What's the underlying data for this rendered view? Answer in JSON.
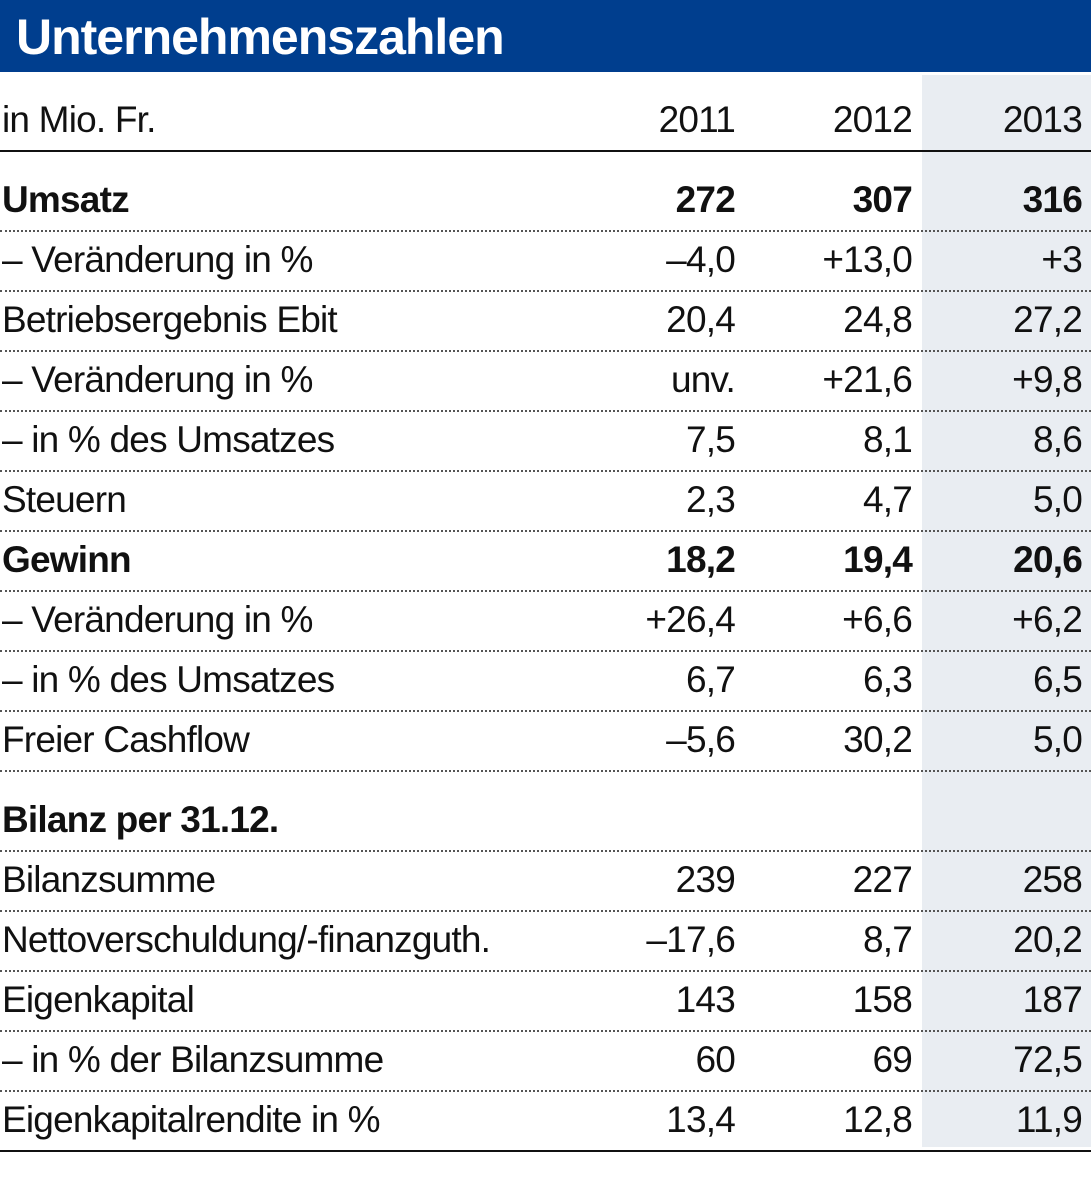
{
  "header": {
    "title": "Unternehmenszahlen"
  },
  "table": {
    "columns": [
      "in Mio. Fr.",
      "2011",
      "2012",
      "2013"
    ],
    "rows": [
      {
        "cells": [
          "Umsatz",
          "272",
          "307",
          "316"
        ],
        "bold": true
      },
      {
        "cells": [
          "– Veränderung in %",
          "–4,0",
          "+13,0",
          "+3"
        ],
        "bold": false
      },
      {
        "cells": [
          "Betriebsergebnis Ebit",
          "20,4",
          "24,8",
          "27,2"
        ],
        "bold": false
      },
      {
        "cells": [
          "– Veränderung in %",
          "unv.",
          "+21,6",
          "+9,8"
        ],
        "bold": false
      },
      {
        "cells": [
          "– in % des Umsatzes",
          "7,5",
          "8,1",
          "8,6"
        ],
        "bold": false
      },
      {
        "cells": [
          "Steuern",
          "2,3",
          "4,7",
          "5,0"
        ],
        "bold": false
      },
      {
        "cells": [
          "Gewinn",
          "18,2",
          "19,4",
          "20,6"
        ],
        "bold": true
      },
      {
        "cells": [
          "– Veränderung in %",
          "+26,4",
          "+6,6",
          "+6,2"
        ],
        "bold": false
      },
      {
        "cells": [
          "– in % des Umsatzes",
          "6,7",
          "6,3",
          "6,5"
        ],
        "bold": false
      },
      {
        "cells": [
          "Freier Cashflow",
          "–5,6",
          "30,2",
          "5,0"
        ],
        "bold": false
      },
      {
        "cells": [
          "Bilanz per 31.12."
        ],
        "bold": true
      },
      {
        "cells": [
          "Bilanzsumme",
          "239",
          "227",
          "258"
        ],
        "bold": false
      },
      {
        "cells": [
          "Nettoverschuldung/-finanzguth.",
          "–17,6",
          "8,7",
          "20,2"
        ],
        "bold": false
      },
      {
        "cells": [
          "Eigenkapital",
          "143",
          "158",
          "187"
        ],
        "bold": false
      },
      {
        "cells": [
          "– in % der Bilanzsumme",
          "60",
          "69",
          "72,5"
        ],
        "bold": false
      },
      {
        "cells": [
          "Eigenkapitalrendite in %",
          "13,4",
          "12,8",
          "11,9"
        ],
        "bold": false
      }
    ]
  }
}
